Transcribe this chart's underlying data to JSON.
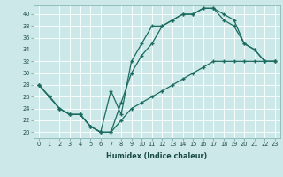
{
  "xlabel": "Humidex (Indice chaleur)",
  "bg_color": "#cde8e8",
  "line_color": "#1a6b60",
  "xlim": [
    -0.5,
    23.5
  ],
  "ylim": [
    19.0,
    41.5
  ],
  "yticks": [
    20,
    22,
    24,
    26,
    28,
    30,
    32,
    34,
    36,
    38,
    40
  ],
  "xticks": [
    0,
    1,
    2,
    3,
    4,
    5,
    6,
    7,
    8,
    9,
    10,
    11,
    12,
    13,
    14,
    15,
    16,
    17,
    18,
    19,
    20,
    21,
    22,
    23
  ],
  "line1_y": [
    28,
    26,
    24,
    23,
    23,
    21,
    20,
    27,
    23,
    32,
    35,
    38,
    38,
    39,
    40,
    40,
    41,
    41,
    40,
    39,
    35,
    34,
    32,
    32
  ],
  "line2_y": [
    28,
    26,
    24,
    23,
    23,
    21,
    20,
    20,
    25,
    30,
    33,
    35,
    38,
    39,
    40,
    40,
    41,
    41,
    39,
    38,
    35,
    34,
    32,
    32
  ],
  "line3_y": [
    28,
    26,
    24,
    23,
    23,
    21,
    20,
    20,
    22,
    24,
    25,
    26,
    27,
    28,
    29,
    30,
    31,
    32,
    32,
    32,
    32,
    32,
    32,
    32
  ]
}
